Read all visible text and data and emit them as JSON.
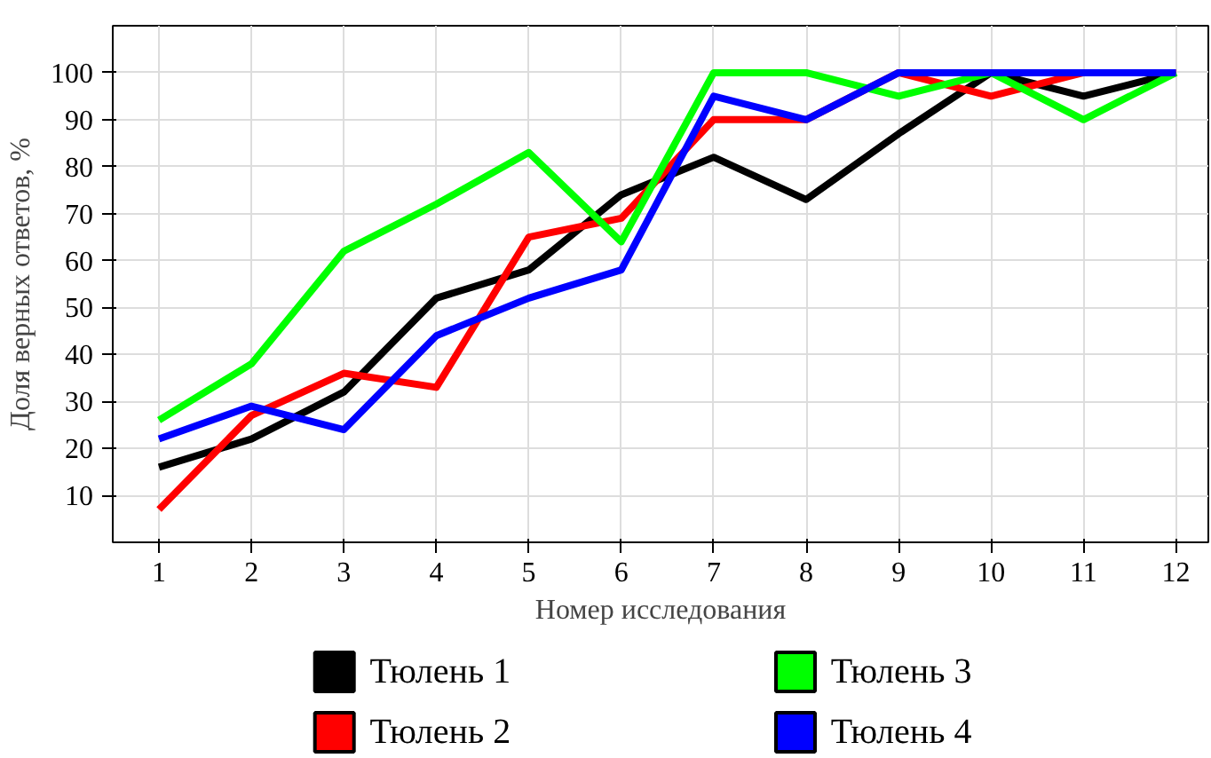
{
  "chart_data": {
    "type": "line",
    "xlabel": "Номер исследования",
    "ylabel": "Доля верных ответов, %",
    "x": [
      1,
      2,
      3,
      4,
      5,
      6,
      7,
      8,
      9,
      10,
      11,
      12
    ],
    "xlim": [
      0.5,
      12.35
    ],
    "xticks": [
      1,
      2,
      3,
      4,
      5,
      6,
      7,
      8,
      9,
      10,
      11,
      12
    ],
    "ylim": [
      0,
      110
    ],
    "yticks": [
      10,
      20,
      30,
      40,
      50,
      60,
      70,
      80,
      90,
      100
    ],
    "grid": true,
    "legend": "bottom",
    "marker": "none",
    "line_style": "solid",
    "series": [
      {
        "name": "Тюлень 1",
        "color": "#000000",
        "values": [
          16,
          22,
          32,
          52,
          58,
          74,
          82,
          73,
          87,
          100,
          95,
          100
        ]
      },
      {
        "name": "Тюлень 2",
        "color": "#ff0000",
        "values": [
          7,
          27,
          36,
          33,
          65,
          69,
          90,
          90,
          100,
          95,
          100,
          100
        ]
      },
      {
        "name": "Тюлень 3",
        "color": "#00ff00",
        "values": [
          26,
          38,
          62,
          72,
          83,
          64,
          100,
          100,
          95,
          100,
          90,
          100
        ]
      },
      {
        "name": "Тюлень 4",
        "color": "#0000ff",
        "values": [
          22,
          29,
          24,
          44,
          52,
          58,
          95,
          90,
          100,
          100,
          100,
          100
        ]
      }
    ]
  }
}
